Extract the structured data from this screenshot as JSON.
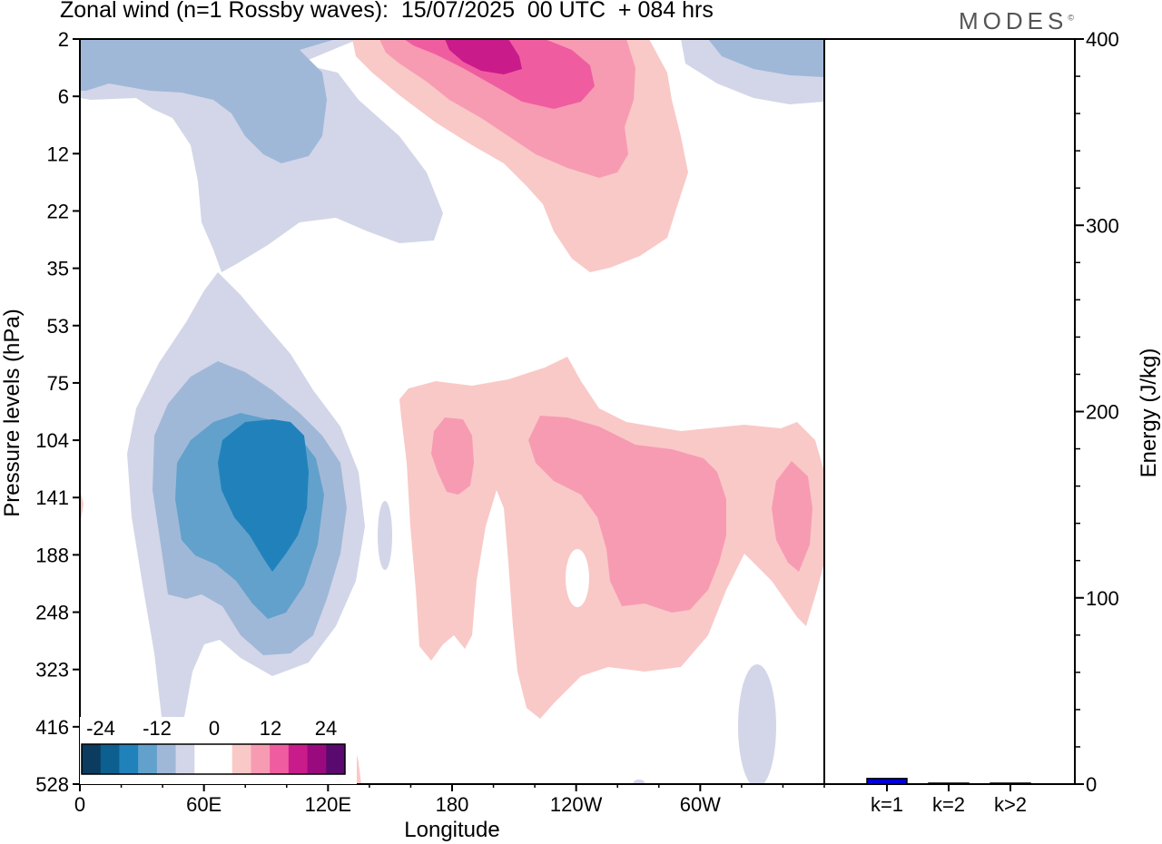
{
  "title": "Zonal wind (n=1 Rossby waves):  15/07/2025  00 UTC  + 084 hrs",
  "logo": "MODES",
  "logo_mark": "©",
  "chart_data": [
    {
      "type": "heatmap",
      "xlabel": "Longitude",
      "ylabel": "Pressure levels (hPa)",
      "x_ticks": [
        "0",
        "60E",
        "120E",
        "180",
        "120W",
        "60W"
      ],
      "x_tick_degrees": [
        0,
        60,
        120,
        180,
        240,
        300
      ],
      "xlim": [
        0,
        360
      ],
      "y_ticks": [
        "2",
        "6",
        "12",
        "22",
        "35",
        "53",
        "75",
        "104",
        "141",
        "188",
        "248",
        "323",
        "416",
        "528"
      ],
      "colorbar_labels": [
        "-24",
        "-12",
        "0",
        "12",
        "24"
      ],
      "colorbar_levels": [
        -30,
        -25,
        -20,
        -15,
        -10,
        -5,
        0,
        5,
        10,
        15,
        20,
        25,
        30,
        35
      ],
      "colorbar_colors": [
        "#0b3b5e",
        "#0d5f8f",
        "#2182bb",
        "#62a1cc",
        "#a0b8d8",
        "#d3d6e8",
        "#ffffff",
        "#ffffff",
        "#f9c9c7",
        "#f79bb3",
        "#ef5da0",
        "#ca1b8b",
        "#9a0a7e",
        "#5a0a6e"
      ],
      "features": [
        {
          "name": "easterly-core-upper-left",
          "lon": 60,
          "level": "6",
          "value": -10
        },
        {
          "name": "easterly-core-troposphere",
          "lon": 92,
          "level": "141",
          "value": -20
        },
        {
          "name": "westerly-core-upper",
          "lon": 195,
          "level": "2",
          "value": 25
        },
        {
          "name": "westerly-band-troposphere",
          "lon": 255,
          "level": "141",
          "value": 10
        },
        {
          "name": "westerly-blob-east",
          "lon": 347,
          "level": "141",
          "value": 10
        }
      ]
    },
    {
      "type": "bar",
      "ylabel": "Energy (J/kg)",
      "categories": [
        "k=1",
        "k=2",
        "k>2"
      ],
      "values": [
        3,
        0.5,
        0.5
      ],
      "ylim": [
        0,
        400
      ],
      "y_ticks": [
        "0",
        "100",
        "200",
        "300",
        "400"
      ],
      "colors": {
        "bar_fill": "#0000dd",
        "bar_outline": "#000000"
      }
    }
  ]
}
